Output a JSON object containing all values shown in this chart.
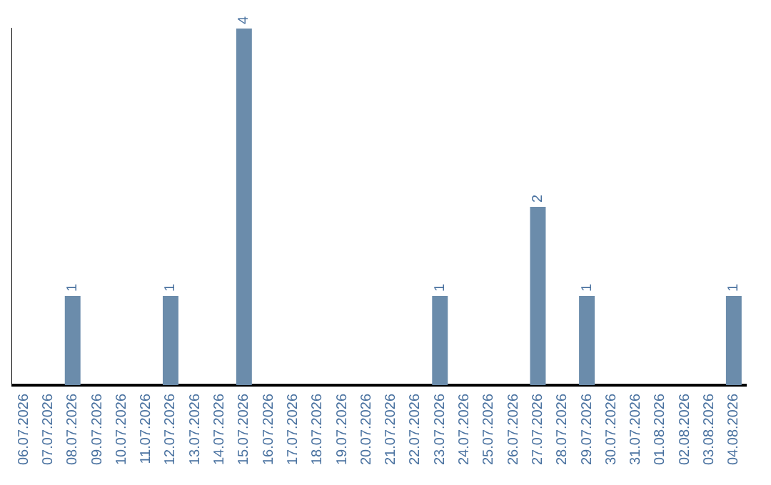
{
  "chart_data": {
    "type": "bar",
    "categories": [
      "06.07.2026",
      "07.07.2026",
      "08.07.2026",
      "09.07.2026",
      "10.07.2026",
      "11.07.2026",
      "12.07.2026",
      "13.07.2026",
      "14.07.2026",
      "15.07.2026",
      "16.07.2026",
      "17.07.2026",
      "18.07.2026",
      "19.07.2026",
      "20.07.2026",
      "21.07.2026",
      "22.07.2026",
      "23.07.2026",
      "24.07.2026",
      "25.07.2026",
      "26.07.2026",
      "27.07.2026",
      "28.07.2026",
      "29.07.2026",
      "30.07.2026",
      "31.07.2026",
      "01.08.2026",
      "02.08.2026",
      "03.08.2026",
      "04.08.2026"
    ],
    "values": [
      0,
      0,
      1,
      0,
      0,
      0,
      1,
      0,
      0,
      4,
      0,
      0,
      0,
      0,
      0,
      0,
      0,
      1,
      0,
      0,
      0,
      2,
      0,
      1,
      0,
      0,
      0,
      0,
      0,
      1
    ],
    "value_labels": [
      null,
      null,
      "1",
      null,
      null,
      null,
      "1",
      null,
      null,
      "4",
      null,
      null,
      null,
      null,
      null,
      null,
      null,
      "1",
      null,
      null,
      null,
      "2",
      null,
      "1",
      null,
      null,
      null,
      null,
      null,
      "1"
    ],
    "color": "#6b8cab",
    "ylim": [
      0,
      4
    ],
    "tick_labels": "x",
    "grid": false,
    "legend": false
  }
}
